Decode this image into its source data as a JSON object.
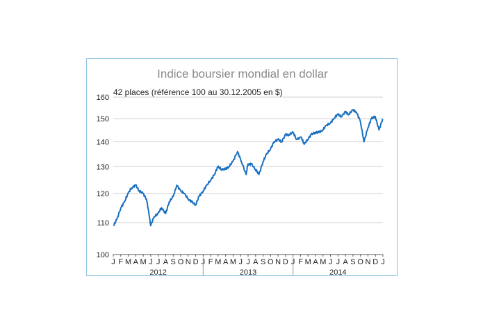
{
  "chart_data": {
    "type": "line",
    "title": "Indice boursier mondial en dollar",
    "subtitle": "42 places (référence 100 au 30.12.2005 en $)",
    "y_scale": "log",
    "ylim": [
      100,
      160
    ],
    "yticks": [
      100,
      110,
      120,
      130,
      140,
      150,
      160
    ],
    "grid": true,
    "month_labels": [
      "J",
      "F",
      "M",
      "A",
      "M",
      "J",
      "J",
      "A",
      "S",
      "O",
      "N",
      "D",
      "J",
      "F",
      "M",
      "A",
      "M",
      "J",
      "J",
      "A",
      "S",
      "O",
      "N",
      "D",
      "J",
      "F",
      "M",
      "A",
      "M",
      "J",
      "J",
      "A",
      "S",
      "O",
      "N",
      "D",
      "J"
    ],
    "years": [
      "2012",
      "2013",
      "2014"
    ],
    "color": "#1a6fc0",
    "series": [
      {
        "name": "",
        "x": [
          "2012-01-02",
          "2012-01-15",
          "2012-02-01",
          "2012-02-15",
          "2012-03-01",
          "2012-03-15",
          "2012-04-01",
          "2012-04-15",
          "2012-05-01",
          "2012-05-15",
          "2012-05-25",
          "2012-06-01",
          "2012-06-15",
          "2012-07-01",
          "2012-07-15",
          "2012-08-01",
          "2012-08-15",
          "2012-09-01",
          "2012-09-15",
          "2012-10-01",
          "2012-10-15",
          "2012-11-01",
          "2012-11-15",
          "2012-12-01",
          "2012-12-15",
          "2013-01-01",
          "2013-01-15",
          "2013-02-01",
          "2013-02-15",
          "2013-03-01",
          "2013-03-15",
          "2013-04-01",
          "2013-04-15",
          "2013-05-01",
          "2013-05-20",
          "2013-06-01",
          "2013-06-24",
          "2013-07-01",
          "2013-07-15",
          "2013-08-01",
          "2013-08-15",
          "2013-09-01",
          "2013-09-15",
          "2013-10-01",
          "2013-10-15",
          "2013-11-01",
          "2013-11-15",
          "2013-12-01",
          "2013-12-15",
          "2014-01-01",
          "2014-01-15",
          "2014-02-03",
          "2014-02-15",
          "2014-03-01",
          "2014-03-15",
          "2014-04-01",
          "2014-04-15",
          "2014-05-01",
          "2014-05-15",
          "2014-06-01",
          "2014-06-15",
          "2014-07-01",
          "2014-07-15",
          "2014-08-01",
          "2014-08-15",
          "2014-09-01",
          "2014-09-15",
          "2014-10-01",
          "2014-10-16",
          "2014-11-01",
          "2014-11-15",
          "2014-12-01",
          "2014-12-16",
          "2014-12-31"
        ],
        "values": [
          109,
          111,
          115,
          117,
          120,
          122,
          123,
          121,
          120,
          118,
          113,
          109,
          112,
          113,
          115,
          113,
          117,
          119,
          123,
          121,
          120,
          118,
          117,
          116,
          119,
          121,
          123,
          125,
          127,
          130,
          129,
          129,
          130,
          132,
          136,
          133,
          127,
          131,
          131,
          129,
          127,
          132,
          135,
          137,
          140,
          141,
          140,
          143,
          143,
          144,
          141,
          142,
          139,
          141,
          143,
          144,
          144,
          145,
          147,
          148,
          150,
          152,
          151,
          153,
          152,
          154,
          153,
          149,
          140,
          146,
          150,
          151,
          145,
          150
        ]
      }
    ]
  }
}
